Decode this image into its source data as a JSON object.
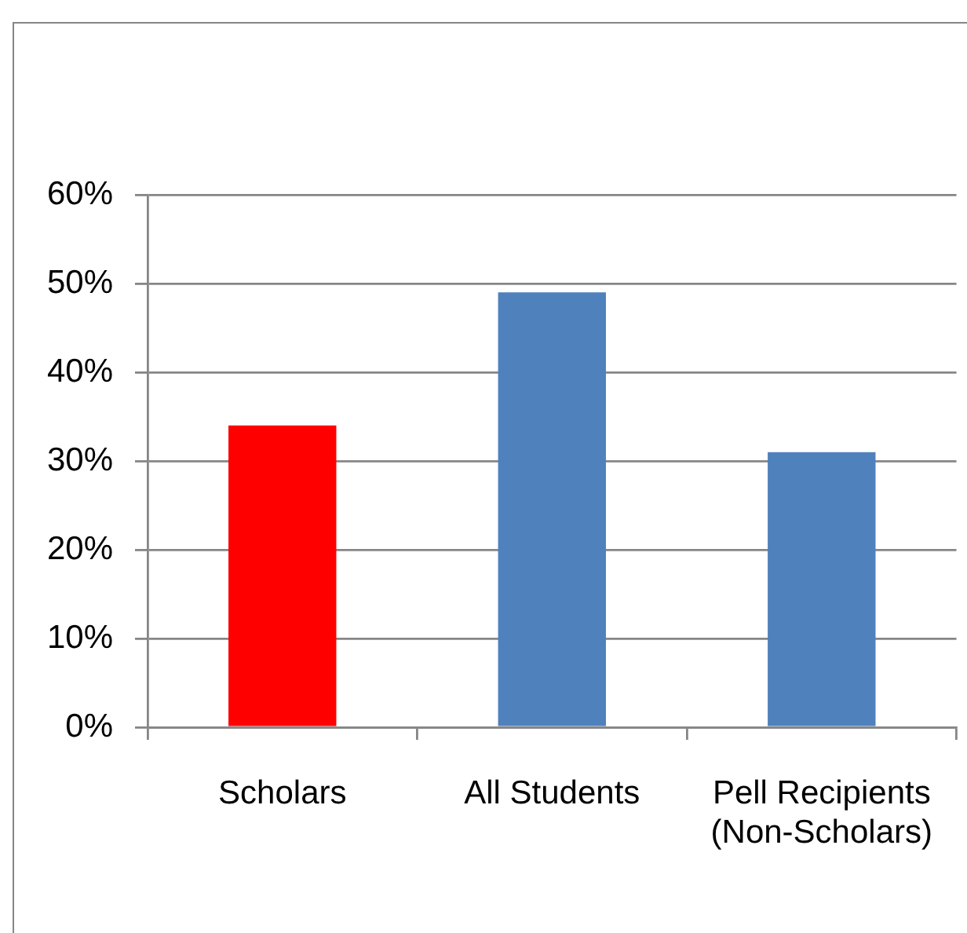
{
  "chart_data": {
    "type": "bar",
    "categories": [
      "Scholars",
      "All Students",
      "Pell Recipients (Non-Scholars)"
    ],
    "values": [
      34,
      49,
      31
    ],
    "colors": [
      "#ff0000",
      "#4f81bd",
      "#4f81bd"
    ],
    "ylim": [
      0,
      60
    ],
    "yticks": [
      {
        "value": 0,
        "label": "0%"
      },
      {
        "value": 10,
        "label": "10%"
      },
      {
        "value": 20,
        "label": "20%"
      },
      {
        "value": 30,
        "label": "30%"
      },
      {
        "value": 40,
        "label": "40%"
      },
      {
        "value": 50,
        "label": "50%"
      },
      {
        "value": 60,
        "label": "60%"
      }
    ],
    "grid": "y"
  }
}
